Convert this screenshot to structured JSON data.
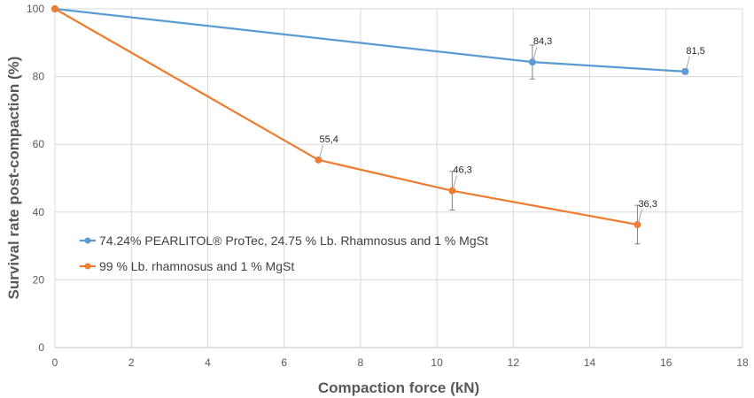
{
  "chart_data": {
    "type": "line",
    "xlabel": "Compaction force (kN)",
    "ylabel": "Survival rate post-compaction (%)",
    "xlim": [
      0,
      18
    ],
    "ylim": [
      0,
      100
    ],
    "xticks": [
      0,
      2,
      4,
      6,
      8,
      10,
      12,
      14,
      16,
      18
    ],
    "yticks": [
      0,
      20,
      40,
      60,
      80,
      100
    ],
    "grid": true,
    "legend_position": "left",
    "series": [
      {
        "name": "74.24% PEARLITOL® ProTec, 24.75 % Lb. Rhamnosus and 1 % MgSt",
        "color": "#5B9BD5",
        "points": [
          {
            "x": 0,
            "y": 100,
            "err": 0,
            "label": ""
          },
          {
            "x": 12.5,
            "y": 84.3,
            "err": 5.0,
            "label": "84,3"
          },
          {
            "x": 16.5,
            "y": 81.5,
            "err": 0.8,
            "label": "81,5"
          }
        ]
      },
      {
        "name": "99 % Lb. rhamnosus and 1 % MgSt",
        "color": "#ED7D31",
        "points": [
          {
            "x": 0,
            "y": 100,
            "err": 0,
            "label": ""
          },
          {
            "x": 6.9,
            "y": 55.4,
            "err": 0,
            "label": "55,4"
          },
          {
            "x": 10.4,
            "y": 46.3,
            "err": 5.7,
            "label": "46,3"
          },
          {
            "x": 15.25,
            "y": 36.3,
            "err": 5.7,
            "label": "36,3"
          }
        ]
      }
    ]
  }
}
